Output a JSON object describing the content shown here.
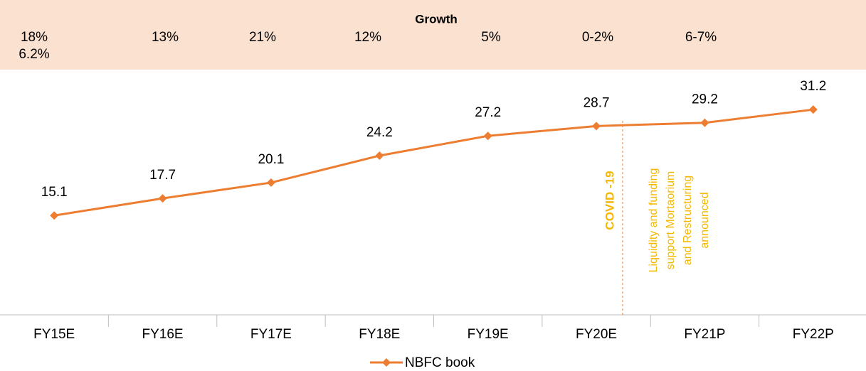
{
  "chart_data": {
    "type": "line",
    "growth_title": "Growth",
    "growth_labels": [
      "18%",
      "13%",
      "21%",
      "12%",
      "5%",
      "0-2%",
      "6-7%"
    ],
    "growth_sub_label": "6.2%",
    "categories": [
      "FY15E",
      "FY16E",
      "FY17E",
      "FY18E",
      "FY19E",
      "FY20E",
      "FY21P",
      "FY22P"
    ],
    "series": [
      {
        "name": "NBFC book",
        "color": "#ed7d31",
        "values": [
          15.1,
          17.7,
          20.1,
          24.2,
          27.2,
          28.7,
          29.2,
          31.2
        ]
      }
    ],
    "ylim": [
      0,
      35
    ],
    "annotations": [
      {
        "text": "COVID -19",
        "color": "#f5b800"
      },
      {
        "lines": [
          "Liquidity and funding",
          "support Mortaorium",
          "and Restructuring",
          "announced"
        ],
        "color": "#f5b800"
      }
    ],
    "legend": "bottom"
  }
}
